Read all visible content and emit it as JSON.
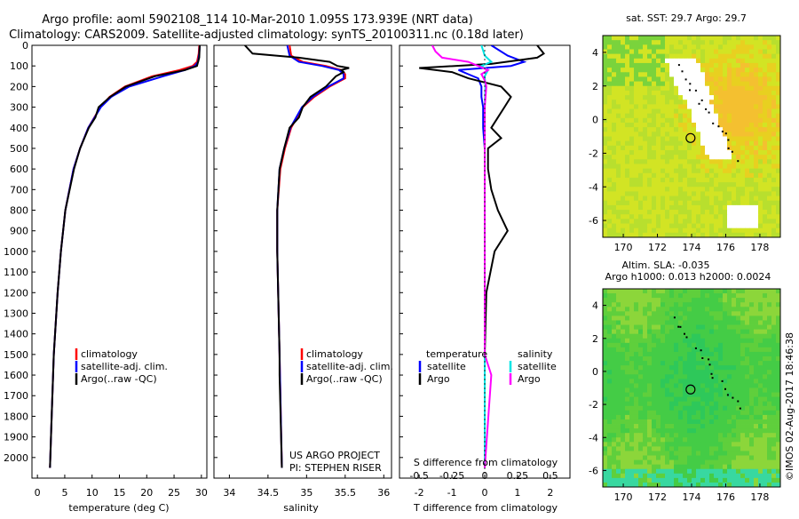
{
  "header": {
    "line1": "Argo profile: aoml 5902108_114 10-Mar-2010 1.095S 173.939E (NRT data)",
    "line2": "Climatology: CARS2009. Satellite-adjusted climatology: synTS_20100311.nc (0.18d later)"
  },
  "side_text": "©IMOS 02-Aug-2017 18:46:38",
  "chart_data": [
    {
      "type": "line",
      "panel": "temperature",
      "xlabel": "temperature (deg C)",
      "ylim": [
        0,
        2100
      ],
      "xlim": [
        -1,
        31
      ],
      "y_reversed": true,
      "x_ticks": [
        0,
        5,
        10,
        15,
        20,
        25,
        30
      ],
      "y_ticks": [
        0,
        100,
        200,
        300,
        400,
        500,
        600,
        700,
        800,
        900,
        1000,
        1100,
        1200,
        1300,
        1400,
        1500,
        1600,
        1700,
        1800,
        1900,
        2000
      ],
      "legend": [
        "climatology",
        "satellite-adj. clim.",
        "Argo(..raw -QC)"
      ],
      "series": [
        {
          "name": "climatology",
          "color": "#ff0000",
          "depth": [
            0,
            40,
            80,
            100,
            120,
            150,
            200,
            250,
            300,
            400,
            500,
            600,
            800,
            1000,
            1200,
            1500,
            1800,
            2050
          ],
          "values": [
            29.6,
            29.5,
            29.2,
            28.4,
            26.0,
            21.0,
            16.0,
            13.2,
            11.5,
            9.3,
            7.8,
            6.6,
            5.1,
            4.3,
            3.7,
            3.0,
            2.6,
            2.3
          ]
        },
        {
          "name": "satellite-adj. clim.",
          "color": "#0000ff",
          "depth": [
            0,
            40,
            80,
            100,
            120,
            150,
            200,
            250,
            300,
            400,
            500,
            600,
            800,
            1000,
            1200,
            1500,
            1800,
            2050
          ],
          "values": [
            29.7,
            29.6,
            29.4,
            28.8,
            27.0,
            23.0,
            16.8,
            13.5,
            11.6,
            9.3,
            7.8,
            6.6,
            5.1,
            4.3,
            3.7,
            3.0,
            2.6,
            2.3
          ]
        },
        {
          "name": "Argo(..raw -QC)",
          "color": "#000000",
          "depth": [
            0,
            60,
            100,
            120,
            150,
            200,
            250,
            300,
            350,
            400,
            450,
            500,
            600,
            800,
            1000,
            1200,
            1500,
            1800,
            2050
          ],
          "values": [
            29.7,
            29.6,
            29.2,
            27.0,
            21.5,
            16.2,
            13.3,
            11.2,
            10.6,
            9.4,
            8.6,
            7.8,
            6.7,
            5.1,
            4.3,
            3.7,
            3.0,
            2.6,
            2.3
          ]
        }
      ]
    },
    {
      "type": "line",
      "panel": "salinity",
      "xlabel": "salinity",
      "ylim": [
        0,
        2100
      ],
      "xlim": [
        33.8,
        36.1
      ],
      "y_reversed": true,
      "x_ticks": [
        34,
        34.5,
        35,
        35.5,
        36
      ],
      "legend": [
        "climatology",
        "satellite-adj. clim.",
        "Argo(..raw -QC)"
      ],
      "annotation": [
        "US ARGO PROJECT",
        "PI: STEPHEN RISER"
      ],
      "series": [
        {
          "name": "climatology",
          "color": "#ff0000",
          "depth": [
            0,
            50,
            80,
            100,
            120,
            140,
            160,
            200,
            250,
            300,
            400,
            500,
            600,
            800,
            1000,
            1500,
            2050
          ],
          "values": [
            34.78,
            34.8,
            34.95,
            35.25,
            35.45,
            35.5,
            35.5,
            35.3,
            35.1,
            34.95,
            34.8,
            34.72,
            34.66,
            34.62,
            34.62,
            34.65,
            34.68
          ]
        },
        {
          "name": "satellite-adj. clim.",
          "color": "#0000ff",
          "depth": [
            0,
            50,
            80,
            100,
            120,
            140,
            160,
            200,
            250,
            300,
            400,
            500,
            600,
            800,
            1000,
            1500,
            2050
          ],
          "values": [
            34.75,
            34.78,
            34.9,
            35.2,
            35.42,
            35.48,
            35.48,
            35.28,
            35.08,
            34.94,
            34.79,
            34.71,
            34.65,
            34.62,
            34.62,
            34.65,
            34.68
          ]
        },
        {
          "name": "Argo(..raw -QC)",
          "color": "#000000",
          "depth": [
            0,
            20,
            40,
            60,
            80,
            100,
            110,
            120,
            130,
            150,
            200,
            250,
            300,
            350,
            400,
            500,
            600,
            800,
            1000,
            1500,
            1600,
            2050
          ],
          "values": [
            34.2,
            34.25,
            34.3,
            34.9,
            35.3,
            35.4,
            35.55,
            35.45,
            35.48,
            35.38,
            35.25,
            35.05,
            34.95,
            34.9,
            34.78,
            34.71,
            34.65,
            34.62,
            34.62,
            34.65,
            34.65,
            34.68
          ]
        }
      ]
    },
    {
      "type": "line",
      "panel": "difference",
      "xlabel": "T difference from climatology",
      "xlabel_top": "S difference from climatology",
      "xlim": [
        -2.6,
        2.6
      ],
      "ylim": [
        0,
        2100
      ],
      "y_reversed": true,
      "x_ticks_bottom": [
        -2,
        -1,
        0,
        1,
        2
      ],
      "x_ticks_top": [
        "-0.5",
        "-0.25",
        "0",
        "0.25",
        "0.5"
      ],
      "legend": {
        "temperature_title": "temperature",
        "salinity_title": "salinity",
        "temperature": [
          "satellite",
          "Argo"
        ],
        "salinity": [
          "satellite",
          "Argo"
        ]
      },
      "series": [
        {
          "name": "temperature satellite",
          "color": "#0000ff",
          "depth": [
            0,
            50,
            80,
            100,
            120,
            140,
            160,
            200,
            250,
            300,
            400,
            500,
            600,
            800,
            1000,
            1500,
            2050
          ],
          "values": [
            0.2,
            0.7,
            1.2,
            0.8,
            -0.8,
            -0.5,
            -0.2,
            -0.1,
            -0.1,
            -0.05,
            -0.05,
            0,
            0,
            0,
            0,
            0,
            0
          ]
        },
        {
          "name": "temperature Argo",
          "color": "#000000",
          "depth": [
            0,
            40,
            60,
            90,
            110,
            130,
            160,
            200,
            250,
            300,
            350,
            400,
            450,
            500,
            600,
            700,
            800,
            900,
            1000,
            1200,
            1500,
            1800,
            2050
          ],
          "values": [
            1.6,
            1.8,
            1.6,
            0.2,
            -2.0,
            -1.0,
            -0.5,
            0.5,
            0.8,
            0.6,
            0.4,
            0.2,
            0.5,
            0.1,
            0.1,
            0.2,
            0.4,
            0.7,
            0.3,
            0.05,
            0,
            0,
            0
          ]
        },
        {
          "name": "salinity satellite",
          "color": "#00e5e5",
          "depth": [
            0,
            50,
            80,
            100,
            120,
            150,
            200,
            300,
            500,
            1000,
            2050
          ],
          "values": [
            -0.1,
            0.0,
            0.2,
            -0.1,
            0.1,
            0.0,
            0.02,
            0.0,
            0.0,
            0.0,
            0.0
          ]
        },
        {
          "name": "salinity Argo",
          "color": "#ff00ff",
          "depth": [
            0,
            30,
            60,
            80,
            100,
            120,
            140,
            170,
            200,
            300,
            500,
            1000,
            1500,
            1600,
            2050
          ],
          "values": [
            -1.6,
            -1.5,
            -1.3,
            -0.5,
            -0.2,
            0.1,
            -0.1,
            0.0,
            0.05,
            0.0,
            0.0,
            0.0,
            0.0,
            0.2,
            0.0
          ]
        }
      ]
    },
    {
      "type": "heatmap",
      "panel": "sst_map",
      "title": "sat. SST: 29.7  Argo: 29.7",
      "xlim": [
        168.8,
        179.2
      ],
      "ylim": [
        -7,
        5
      ],
      "x_ticks": [
        170,
        172,
        174,
        176,
        178
      ],
      "y_ticks": [
        4,
        2,
        0,
        -2,
        -4,
        -6
      ],
      "profile_location": [
        173.939,
        -1.095
      ]
    },
    {
      "type": "heatmap",
      "panel": "sla_map",
      "title": "Altim. SLA: -0.035",
      "subtitle": "Argo h1000: 0.013  h2000: 0.0024",
      "xlim": [
        168.8,
        179.2
      ],
      "ylim": [
        -7,
        5
      ],
      "x_ticks": [
        170,
        172,
        174,
        176,
        178
      ],
      "y_ticks": [
        4,
        2,
        0,
        -2,
        -4,
        -6
      ],
      "profile_location": [
        173.939,
        -1.095
      ]
    }
  ]
}
